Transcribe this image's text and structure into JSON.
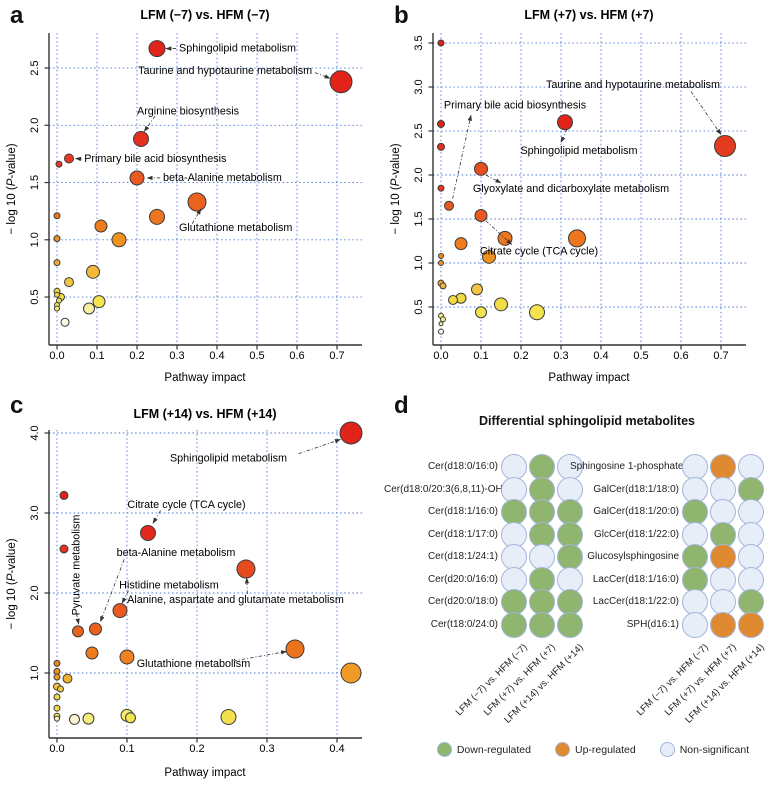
{
  "figure_type": "four-panel metabolomics figure",
  "chart_data": [
    {
      "type": "scatter",
      "panel_letter": "a",
      "title": "LFM (−7) vs. HFM (−7)",
      "xlabel": "Pathway impact",
      "ylabel_parts": [
        "− log 10 (",
        "P",
        "-value)"
      ],
      "xlim": [
        -0.02,
        0.7625
      ],
      "ylim": [
        0.081,
        2.806
      ],
      "xticks": [
        0.0,
        0.1,
        0.2,
        0.3,
        0.4,
        0.5,
        0.6,
        0.7
      ],
      "yticks": [
        0.5,
        1.0,
        1.5,
        2.0,
        2.5
      ],
      "grid": true,
      "point_format": [
        "x",
        "y",
        "radius_px",
        "color"
      ],
      "points": [
        [
          0.25,
          2.67,
          8,
          "#E2231A"
        ],
        [
          0.71,
          2.38,
          11,
          "#E2231A"
        ],
        [
          0.21,
          1.88,
          7.5,
          "#E53020"
        ],
        [
          0.03,
          1.71,
          4.5,
          "#E63823"
        ],
        [
          0.005,
          1.66,
          3,
          "#E63823"
        ],
        [
          0.2,
          1.54,
          7,
          "#E85A20"
        ],
        [
          0.35,
          1.33,
          9,
          "#EA6120"
        ],
        [
          0.25,
          1.2,
          7.5,
          "#ED751D"
        ],
        [
          0.11,
          1.12,
          6,
          "#EE7C1C"
        ],
        [
          0.155,
          1.0,
          7,
          "#F0921F"
        ],
        [
          0.0,
          1.21,
          3,
          "#ED751D"
        ],
        [
          0.0,
          1.01,
          3,
          "#F0921F"
        ],
        [
          0.0,
          0.8,
          3,
          "#F2A62E"
        ],
        [
          0.09,
          0.72,
          6.5,
          "#F3B83A"
        ],
        [
          0.03,
          0.63,
          4.5,
          "#F2C642"
        ],
        [
          0.0,
          0.55,
          3,
          "#F2D845"
        ],
        [
          0.0,
          0.52,
          2.5,
          "#F2D845"
        ],
        [
          0.01,
          0.5,
          3.5,
          "#F2DC48"
        ],
        [
          0.005,
          0.47,
          2.5,
          "#F3E14C"
        ],
        [
          0.0,
          0.43,
          2.5,
          "#F4E765"
        ],
        [
          0.0,
          0.4,
          2.5,
          "#F5EA6E"
        ],
        [
          0.105,
          0.46,
          6,
          "#F3E34E"
        ],
        [
          0.08,
          0.4,
          5.5,
          "#F7F0A4"
        ],
        [
          0.02,
          0.28,
          4,
          "#FDFBE8"
        ]
      ],
      "annotations": [
        {
          "text": "Sphingolipid metabolism",
          "x": 0.305,
          "y": 2.67,
          "anchor": "start",
          "line": [
            0.298,
            2.67,
            0.272,
            2.67
          ]
        },
        {
          "text": "Taurine and hypotaurine metabolism",
          "x": 0.638,
          "y": 2.475,
          "anchor": "end",
          "line": [
            0.645,
            2.46,
            0.683,
            2.41
          ]
        },
        {
          "text": "Arginine biosynthesis",
          "x": 0.2,
          "y": 2.12,
          "anchor": "start",
          "line": [
            0.245,
            2.08,
            0.218,
            1.945
          ]
        },
        {
          "text": "Primary bile acid biosynthesis",
          "x": 0.068,
          "y": 1.705,
          "anchor": "start",
          "line": [
            0.062,
            1.705,
            0.046,
            1.71
          ]
        },
        {
          "text": "beta-Alanine metabolism",
          "x": 0.265,
          "y": 1.54,
          "anchor": "start",
          "line": [
            0.258,
            1.54,
            0.225,
            1.54
          ]
        },
        {
          "text": "Glutathione metabolism",
          "x": 0.305,
          "y": 1.1,
          "anchor": "start",
          "line": [
            0.338,
            1.14,
            0.36,
            1.27
          ]
        }
      ]
    },
    {
      "type": "scatter",
      "panel_letter": "b",
      "title": "LFM (+7) vs. HFM (+7)",
      "xlabel": "Pathway impact",
      "ylabel_parts": [
        "− log 10 (",
        "P",
        "-value)"
      ],
      "xlim": [
        -0.02,
        0.7625
      ],
      "ylim": [
        0.068,
        3.614
      ],
      "xticks": [
        0.0,
        0.1,
        0.2,
        0.3,
        0.4,
        0.5,
        0.6,
        0.7
      ],
      "yticks": [
        0.5,
        1.0,
        1.5,
        2.0,
        2.5,
        3.0,
        3.5
      ],
      "grid": true,
      "point_format": [
        "x",
        "y",
        "radius_px",
        "color"
      ],
      "points": [
        [
          0.0,
          3.5,
          3,
          "#E2231A"
        ],
        [
          0.31,
          2.6,
          7.5,
          "#E2231A"
        ],
        [
          0.0,
          2.58,
          3.5,
          "#E2231A"
        ],
        [
          0.0,
          2.32,
          3.5,
          "#E53020"
        ],
        [
          0.71,
          2.33,
          10.5,
          "#E43A1E"
        ],
        [
          0.0,
          1.85,
          3,
          "#E63823"
        ],
        [
          0.1,
          2.07,
          6.5,
          "#E74E1F"
        ],
        [
          0.02,
          1.65,
          4.5,
          "#E85A20"
        ],
        [
          0.1,
          1.54,
          6,
          "#E85A20"
        ],
        [
          0.16,
          1.28,
          7,
          "#ED751D"
        ],
        [
          0.34,
          1.28,
          8.5,
          "#ED751D"
        ],
        [
          0.05,
          1.22,
          6,
          "#EE7C1C"
        ],
        [
          0.12,
          1.07,
          6.5,
          "#F0921F"
        ],
        [
          0.0,
          1.08,
          2.5,
          "#F08A1E"
        ],
        [
          0.0,
          1.0,
          2.5,
          "#F0921F"
        ],
        [
          0.0,
          0.77,
          3,
          "#F3AC38"
        ],
        [
          0.005,
          0.74,
          3,
          "#F3B23A"
        ],
        [
          0.09,
          0.7,
          5.5,
          "#F2C642"
        ],
        [
          0.05,
          0.6,
          5,
          "#F2D845"
        ],
        [
          0.03,
          0.58,
          4.5,
          "#F2D845"
        ],
        [
          0.15,
          0.53,
          6.5,
          "#F2DC48"
        ],
        [
          0.1,
          0.44,
          5.5,
          "#F3E34E"
        ],
        [
          0.24,
          0.44,
          7.5,
          "#F3E34E"
        ],
        [
          0.0,
          0.4,
          2.5,
          "#F6EC80"
        ],
        [
          0.005,
          0.36,
          2.5,
          "#F7EF92"
        ],
        [
          0.0,
          0.31,
          2,
          "#F8F2B0"
        ],
        [
          0.0,
          0.22,
          2.5,
          "#FDFBE8"
        ]
      ],
      "annotations": [
        {
          "text": "Taurine and hypotaurine metabolism",
          "x": 0.48,
          "y": 3.02,
          "anchor": "middle",
          "line": [
            0.625,
            2.95,
            0.7,
            2.46
          ]
        },
        {
          "text": "Primary bile acid biosynthesis",
          "x": 0.185,
          "y": 2.79,
          "anchor": "middle",
          "line": [
            0.029,
            1.73,
            0.075,
            2.68
          ]
        },
        {
          "text": "Sphingolipid metabolism",
          "x": 0.345,
          "y": 2.27,
          "anchor": "middle",
          "line": [
            0.315,
            2.52,
            0.3,
            2.37
          ]
        },
        {
          "text": "Glyoxylate and dicarboxylate metabolism",
          "x": 0.325,
          "y": 1.84,
          "anchor": "middle",
          "line": [
            0.112,
            2.0,
            0.15,
            1.91
          ]
        },
        {
          "text": "Citrate cycle (TCA cycle)",
          "x": 0.245,
          "y": 1.13,
          "anchor": "middle",
          "line": [
            0.112,
            1.48,
            0.177,
            1.21
          ]
        }
      ]
    },
    {
      "type": "scatter",
      "panel_letter": "c",
      "title": "LFM (+14) vs. HFM (+14)",
      "xlabel": "Pathway impact",
      "ylabel_parts": [
        "− log 10 (",
        "P",
        "-value)"
      ],
      "xlim": [
        -0.0114,
        0.4357
      ],
      "ylim": [
        0.1875,
        4.0375
      ],
      "xticks": [
        0.0,
        0.1,
        0.2,
        0.3,
        0.4
      ],
      "yticks": [
        1.0,
        2.0,
        3.0,
        4.0
      ],
      "grid": true,
      "point_format": [
        "x",
        "y",
        "radius_px",
        "color"
      ],
      "points": [
        [
          0.42,
          4.0,
          11,
          "#E2231A"
        ],
        [
          0.01,
          3.22,
          4,
          "#E2231A"
        ],
        [
          0.13,
          2.75,
          7.5,
          "#E3281C"
        ],
        [
          0.01,
          2.55,
          4,
          "#E43220"
        ],
        [
          0.27,
          2.3,
          9,
          "#E74A1F"
        ],
        [
          0.09,
          1.78,
          7,
          "#E85A20"
        ],
        [
          0.055,
          1.55,
          6,
          "#E9601F"
        ],
        [
          0.03,
          1.52,
          5.5,
          "#E9651E"
        ],
        [
          0.34,
          1.3,
          9,
          "#ED721D"
        ],
        [
          0.05,
          1.25,
          6,
          "#EE7C1C"
        ],
        [
          0.1,
          1.2,
          7,
          "#EF8120"
        ],
        [
          0.42,
          1.0,
          10,
          "#F19A25"
        ],
        [
          0.0,
          1.12,
          3,
          "#EE861E"
        ],
        [
          0.0,
          1.02,
          3,
          "#F0921F"
        ],
        [
          0.0,
          0.95,
          3,
          "#F09A22"
        ],
        [
          0.015,
          0.93,
          4.5,
          "#F2B032"
        ],
        [
          0.0,
          0.83,
          3.5,
          "#F2C43E"
        ],
        [
          0.005,
          0.8,
          3,
          "#F2CC42"
        ],
        [
          0.0,
          0.7,
          3,
          "#F2D845"
        ],
        [
          0.0,
          0.56,
          3,
          "#F2DC48"
        ],
        [
          0.0,
          0.46,
          3,
          "#F3E34E"
        ],
        [
          0.0,
          0.43,
          2.5,
          "#F8F2C0"
        ],
        [
          0.025,
          0.42,
          5,
          "#FAF5D0"
        ],
        [
          0.045,
          0.43,
          5.5,
          "#F6EC80"
        ],
        [
          0.1,
          0.47,
          6,
          "#F5E96B"
        ],
        [
          0.105,
          0.44,
          5,
          "#F3E54F"
        ],
        [
          0.245,
          0.45,
          7.5,
          "#F2E04E"
        ]
      ],
      "annotations": [
        {
          "text": "Sphingolipid metabolism",
          "x": 0.245,
          "y": 3.68,
          "anchor": "middle",
          "line": [
            0.345,
            3.74,
            0.405,
            3.92
          ]
        },
        {
          "text": "Citrate cycle (TCA cycle)",
          "x": 0.185,
          "y": 3.1,
          "anchor": "middle",
          "line": [
            0.148,
            3.03,
            0.137,
            2.87
          ]
        },
        {
          "text": "beta-Alanine metabolism",
          "x": 0.17,
          "y": 2.5,
          "anchor": "middle",
          "line": [
            0.096,
            2.42,
            0.062,
            1.64
          ]
        },
        {
          "text": "Pyruvate metabolism",
          "x": 0.028,
          "y": 2.35,
          "anchor": "middle",
          "rotate": -90,
          "line": [
            0.028,
            1.74,
            0.031,
            1.61
          ]
        },
        {
          "text": "Histidine metabolism",
          "x": 0.16,
          "y": 2.09,
          "anchor": "middle",
          "line": [
            0.102,
            2.03,
            0.093,
            1.87
          ]
        },
        {
          "text": "Alanine, aspartate and glutamate metabolism",
          "x": 0.255,
          "y": 1.91,
          "anchor": "middle",
          "line": [
            0.272,
            1.99,
            0.271,
            2.19
          ]
        },
        {
          "text": "Glutathione metabolism",
          "x": 0.195,
          "y": 1.11,
          "anchor": "middle",
          "line": [
            0.252,
            1.15,
            0.328,
            1.27
          ]
        }
      ]
    },
    {
      "type": "table",
      "panel_letter": "d",
      "title": "Differential sphingolipid metabolites",
      "conditions": [
        "LFM (−7) vs. HFM (−7)",
        "LFM (+7) vs. HFM (+7)",
        "LFM (+14) vs. HFM (+14)"
      ],
      "status_colors": {
        "down": "#8FB56F",
        "up": "#DF8A30",
        "ns": "#E8EEF8"
      },
      "circle_border": "#A3B5DB",
      "left_rows": [
        {
          "label": "Cer(d18:0/16:0)",
          "values": [
            "ns",
            "down",
            "ns"
          ]
        },
        {
          "label": "Cer(d18:0/20:3(6,8,11)-OH(5))",
          "values": [
            "ns",
            "down",
            "ns"
          ]
        },
        {
          "label": "Cer(d18:1/16:0)",
          "values": [
            "down",
            "down",
            "down"
          ]
        },
        {
          "label": "Cer(d18:1/17:0)",
          "values": [
            "ns",
            "down",
            "down"
          ]
        },
        {
          "label": "Cer(d18:1/24:1)",
          "values": [
            "ns",
            "ns",
            "down"
          ]
        },
        {
          "label": "Cer(d20:0/16:0)",
          "values": [
            "ns",
            "down",
            "ns"
          ]
        },
        {
          "label": "Cer(d20:0/18:0)",
          "values": [
            "down",
            "down",
            "down"
          ]
        },
        {
          "label": "Cer(t18:0/24:0)",
          "values": [
            "down",
            "down",
            "down"
          ]
        }
      ],
      "right_rows": [
        {
          "label": "Sphingosine 1-phosphate",
          "values": [
            "ns",
            "up",
            "ns"
          ]
        },
        {
          "label": "GalCer(d18:1/18:0)",
          "values": [
            "ns",
            "ns",
            "down"
          ]
        },
        {
          "label": "GalCer(d18:1/20:0)",
          "values": [
            "down",
            "ns",
            "ns"
          ]
        },
        {
          "label": "GlcCer(d18:1/22:0)",
          "values": [
            "ns",
            "down",
            "ns"
          ]
        },
        {
          "label": "Glucosylsphingosine",
          "values": [
            "down",
            "up",
            "ns"
          ]
        },
        {
          "label": "LacCer(d18:1/16:0)",
          "values": [
            "down",
            "ns",
            "ns"
          ]
        },
        {
          "label": "LacCer(d18:1/22:0)",
          "values": [
            "ns",
            "ns",
            "down"
          ]
        },
        {
          "label": "SPH(d16:1)",
          "values": [
            "ns",
            "up",
            "up"
          ]
        }
      ],
      "legend": [
        {
          "label": "Down-regulated",
          "status": "down"
        },
        {
          "label": "Up-regulated",
          "status": "up"
        },
        {
          "label": "Non-significant",
          "status": "ns"
        }
      ]
    }
  ],
  "style": {
    "grid_color": "#4A76D4",
    "axis_color": "#333333",
    "bubble_stroke": "#3B3B3B",
    "annotation_line_color": "#333333"
  }
}
